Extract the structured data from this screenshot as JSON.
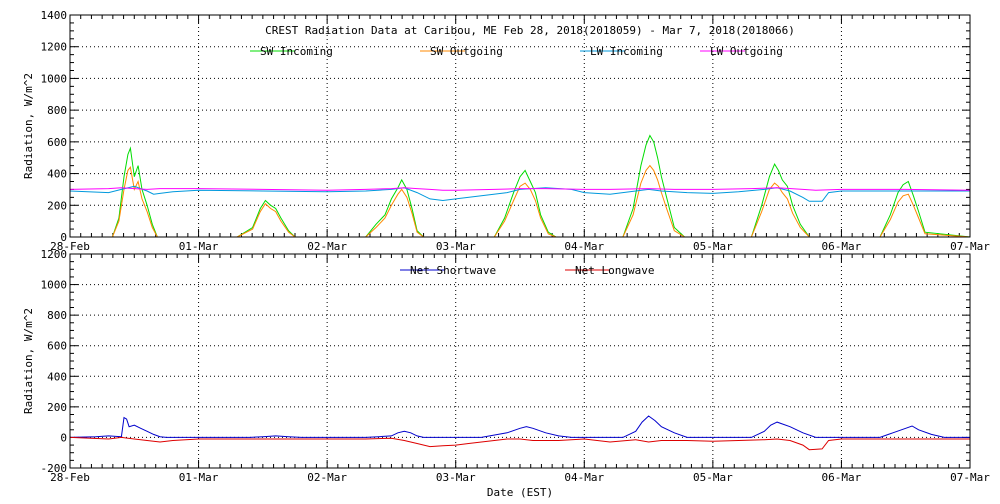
{
  "chart_data": [
    {
      "type": "line",
      "title": "CREST Radiation Data at Caribou, ME   Feb 28, 2018(2018059) - Mar  7, 2018(2018066)",
      "ylabel": "Radiation, W/m^2",
      "xlabel": "",
      "ylim": [
        0,
        1400
      ],
      "y_ticks": [
        0,
        200,
        400,
        600,
        800,
        1000,
        1200,
        1400
      ],
      "xlim": [
        0,
        7
      ],
      "x_tick_labels": [
        "28-Feb",
        "01-Mar",
        "02-Mar",
        "03-Mar",
        "04-Mar",
        "05-Mar",
        "06-Mar",
        "07-Mar"
      ],
      "grid": true,
      "legend_position": "top",
      "series": [
        {
          "name": "SW Incoming",
          "color": "#00dd00",
          "x": [
            0,
            0.33,
            0.38,
            0.42,
            0.45,
            0.47,
            0.5,
            0.53,
            0.56,
            0.6,
            0.64,
            0.68,
            0.75,
            1.3,
            1.42,
            1.48,
            1.52,
            1.56,
            1.6,
            1.64,
            1.7,
            1.75,
            2.3,
            2.38,
            2.45,
            2.5,
            2.55,
            2.58,
            2.62,
            2.66,
            2.7,
            2.75,
            3.3,
            3.38,
            3.45,
            3.5,
            3.54,
            3.58,
            3.62,
            3.66,
            3.72,
            3.78,
            4.3,
            4.38,
            4.44,
            4.48,
            4.51,
            4.54,
            4.57,
            4.6,
            4.64,
            4.7,
            4.78,
            5.3,
            5.38,
            5.44,
            5.48,
            5.51,
            5.54,
            5.58,
            5.62,
            5.68,
            5.75,
            6.3,
            6.38,
            6.44,
            6.48,
            6.52,
            6.56,
            6.6,
            6.65,
            7
          ],
          "y": [
            0,
            0,
            120,
            380,
            520,
            560,
            380,
            450,
            300,
            200,
            80,
            0,
            0,
            0,
            60,
            180,
            230,
            200,
            180,
            120,
            40,
            0,
            0,
            80,
            140,
            240,
            310,
            360,
            300,
            180,
            40,
            0,
            0,
            120,
            280,
            380,
            420,
            350,
            280,
            140,
            30,
            0,
            0,
            180,
            450,
            580,
            640,
            600,
            500,
            380,
            250,
            60,
            0,
            0,
            200,
            380,
            460,
            420,
            360,
            320,
            200,
            80,
            0,
            0,
            140,
            280,
            330,
            350,
            260,
            160,
            30,
            0
          ]
        },
        {
          "name": "SW Outgoing",
          "color": "#ff8800",
          "x": [
            0,
            0.33,
            0.38,
            0.42,
            0.45,
            0.47,
            0.5,
            0.53,
            0.56,
            0.6,
            0.64,
            0.68,
            0.75,
            1.3,
            1.42,
            1.48,
            1.52,
            1.56,
            1.6,
            1.64,
            1.7,
            1.75,
            2.3,
            2.38,
            2.45,
            2.5,
            2.55,
            2.58,
            2.62,
            2.66,
            2.7,
            2.75,
            3.3,
            3.38,
            3.45,
            3.5,
            3.54,
            3.58,
            3.62,
            3.66,
            3.72,
            3.78,
            4.3,
            4.38,
            4.44,
            4.48,
            4.51,
            4.54,
            4.57,
            4.6,
            4.64,
            4.7,
            4.78,
            5.3,
            5.38,
            5.44,
            5.48,
            5.51,
            5.54,
            5.58,
            5.62,
            5.68,
            5.75,
            6.3,
            6.38,
            6.44,
            6.48,
            6.52,
            6.56,
            6.6,
            6.65,
            7
          ],
          "y": [
            0,
            0,
            100,
            300,
            420,
            440,
            300,
            350,
            240,
            160,
            60,
            0,
            0,
            0,
            50,
            160,
            210,
            180,
            160,
            100,
            30,
            0,
            0,
            60,
            120,
            200,
            270,
            300,
            250,
            150,
            30,
            0,
            0,
            100,
            230,
            320,
            340,
            300,
            230,
            120,
            20,
            0,
            0,
            140,
            340,
            420,
            450,
            420,
            360,
            280,
            180,
            40,
            0,
            0,
            160,
            300,
            340,
            320,
            280,
            240,
            150,
            60,
            0,
            0,
            110,
            220,
            260,
            270,
            200,
            120,
            20,
            0
          ]
        },
        {
          "name": "LW Incoming",
          "color": "#0099dd",
          "x": [
            0,
            0.3,
            0.4,
            0.5,
            0.6,
            0.65,
            0.7,
            0.8,
            1.0,
            1.5,
            2.0,
            2.3,
            2.5,
            2.6,
            2.7,
            2.8,
            2.9,
            3.0,
            3.2,
            3.4,
            3.5,
            3.7,
            3.9,
            4.0,
            4.2,
            4.4,
            4.5,
            4.6,
            4.8,
            5.0,
            5.2,
            5.4,
            5.5,
            5.6,
            5.7,
            5.75,
            5.85,
            5.9,
            6.0,
            6.5,
            7
          ],
          "y": [
            290,
            280,
            300,
            320,
            290,
            270,
            275,
            285,
            295,
            290,
            285,
            290,
            300,
            310,
            280,
            240,
            230,
            240,
            260,
            280,
            300,
            310,
            300,
            280,
            270,
            290,
            300,
            290,
            280,
            275,
            285,
            300,
            310,
            290,
            250,
            225,
            225,
            280,
            290,
            290,
            290
          ]
        },
        {
          "name": "LW Outgoing",
          "color": "#ff00ff",
          "x": [
            0,
            0.3,
            0.4,
            0.5,
            0.6,
            0.7,
            0.8,
            1.0,
            1.5,
            2.0,
            2.3,
            2.5,
            2.6,
            2.7,
            2.8,
            2.9,
            3.0,
            3.3,
            3.5,
            3.7,
            4.0,
            4.2,
            4.5,
            4.7,
            5.0,
            5.3,
            5.5,
            5.7,
            5.8,
            6.0,
            6.5,
            7
          ],
          "y": [
            300,
            305,
            310,
            305,
            300,
            305,
            305,
            305,
            300,
            295,
            300,
            305,
            310,
            305,
            300,
            295,
            295,
            300,
            305,
            305,
            300,
            300,
            305,
            300,
            300,
            305,
            310,
            300,
            295,
            300,
            300,
            295
          ]
        }
      ]
    },
    {
      "type": "line",
      "title": "",
      "ylabel": "Radiation, W/m^2",
      "xlabel": "Date (EST)",
      "ylim": [
        -200,
        1200
      ],
      "y_ticks": [
        -200,
        0,
        200,
        400,
        600,
        800,
        1000,
        1200
      ],
      "xlim": [
        0,
        7
      ],
      "x_tick_labels": [
        "28-Feb",
        "01-Mar",
        "02-Mar",
        "03-Mar",
        "04-Mar",
        "05-Mar",
        "06-Mar",
        "07-Mar"
      ],
      "grid": true,
      "legend_position": "top",
      "series": [
        {
          "name": "Net Shortwave",
          "color": "#0000cc",
          "x": [
            0,
            0.2,
            0.3,
            0.4,
            0.42,
            0.44,
            0.46,
            0.5,
            0.55,
            0.6,
            0.65,
            0.7,
            0.75,
            0.9,
            1.2,
            1.4,
            1.5,
            1.6,
            1.7,
            1.8,
            2.0,
            2.3,
            2.4,
            2.5,
            2.55,
            2.6,
            2.65,
            2.7,
            2.75,
            2.8,
            3.0,
            3.2,
            3.4,
            3.5,
            3.55,
            3.6,
            3.7,
            3.8,
            3.9,
            4.0,
            4.2,
            4.3,
            4.4,
            4.45,
            4.5,
            4.55,
            4.6,
            4.7,
            4.8,
            5.0,
            5.2,
            5.3,
            5.4,
            5.45,
            5.5,
            5.6,
            5.7,
            5.8,
            6.0,
            6.2,
            6.3,
            6.4,
            6.5,
            6.55,
            6.6,
            6.7,
            6.8,
            7
          ],
          "y": [
            0,
            5,
            10,
            5,
            130,
            120,
            70,
            80,
            60,
            40,
            20,
            5,
            0,
            0,
            0,
            0,
            5,
            10,
            5,
            0,
            0,
            0,
            5,
            10,
            30,
            40,
            30,
            10,
            0,
            0,
            0,
            0,
            30,
            60,
            70,
            60,
            30,
            10,
            0,
            0,
            0,
            0,
            40,
            100,
            140,
            110,
            70,
            30,
            0,
            0,
            0,
            0,
            40,
            80,
            100,
            70,
            30,
            0,
            0,
            0,
            0,
            30,
            60,
            75,
            50,
            20,
            0,
            0
          ]
        },
        {
          "name": "Net Longwave",
          "color": "#dd0000",
          "x": [
            0,
            0.3,
            0.4,
            0.5,
            0.6,
            0.7,
            0.8,
            1.0,
            1.5,
            2.0,
            2.3,
            2.5,
            2.6,
            2.7,
            2.8,
            2.9,
            3.0,
            3.1,
            3.2,
            3.3,
            3.4,
            3.5,
            3.6,
            3.8,
            4.0,
            4.2,
            4.4,
            4.5,
            4.6,
            4.8,
            5.0,
            5.2,
            5.4,
            5.5,
            5.6,
            5.7,
            5.75,
            5.85,
            5.9,
            6.0,
            6.5,
            7
          ],
          "y": [
            0,
            -10,
            0,
            -10,
            -20,
            -30,
            -20,
            -10,
            -10,
            -10,
            -10,
            -5,
            -20,
            -40,
            -60,
            -55,
            -50,
            -40,
            -30,
            -20,
            -10,
            -10,
            -20,
            -20,
            -10,
            -30,
            -15,
            -30,
            -20,
            -20,
            -25,
            -20,
            -15,
            -10,
            -20,
            -50,
            -80,
            -75,
            -20,
            -10,
            -10,
            -10
          ]
        }
      ]
    }
  ]
}
